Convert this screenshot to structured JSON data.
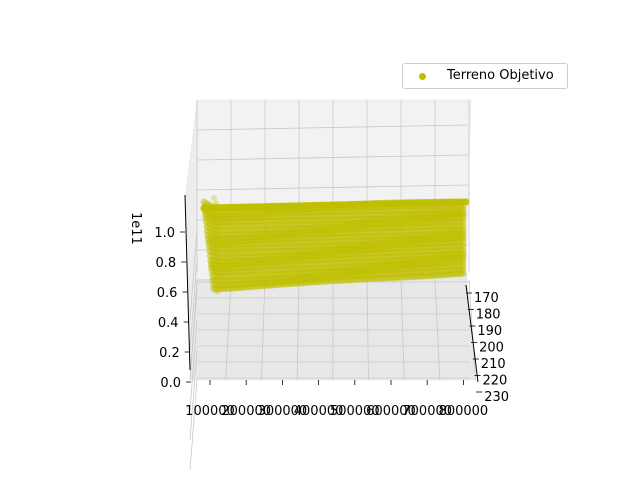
{
  "chart_data": {
    "type": "scatter",
    "projection": "3d",
    "series": [
      {
        "name": "Terreno Objetivo",
        "color": "#bfbf00",
        "x_range": [
          80000,
          900000
        ],
        "y_range": [
          165,
          225
        ],
        "z_range": [
          55000000000,
          125000000000
        ]
      }
    ],
    "x_ticks": [
      "100000",
      "200000",
      "300000",
      "400000",
      "500000",
      "600000",
      "700000",
      "800000"
    ],
    "y_ticks": [
      "170",
      "180",
      "190",
      "200",
      "210",
      "220",
      "230"
    ],
    "z_ticks": [
      "0.0",
      "0.2",
      "0.4",
      "0.6",
      "0.8",
      "1.0"
    ],
    "z_offset_label": "1e11",
    "grid": true,
    "legend_position": "top-right"
  }
}
